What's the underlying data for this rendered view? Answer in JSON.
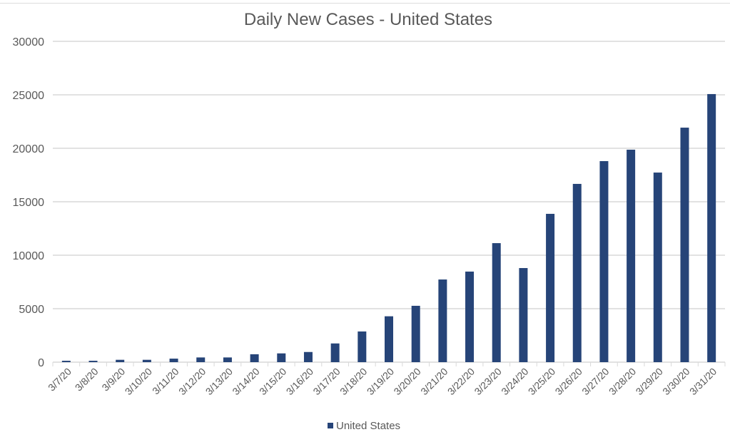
{
  "chart_data": {
    "type": "bar",
    "title": "Daily New Cases - United States",
    "xlabel": "",
    "ylabel": "",
    "ylim": [
      0,
      30000
    ],
    "yticks": [
      0,
      5000,
      10000,
      15000,
      20000,
      25000,
      30000
    ],
    "grid": true,
    "legend": "bottom",
    "categories": [
      "3/7/20",
      "3/8/20",
      "3/9/20",
      "3/10/20",
      "3/11/20",
      "3/12/20",
      "3/13/20",
      "3/14/20",
      "3/15/20",
      "3/16/20",
      "3/17/20",
      "3/18/20",
      "3/19/20",
      "3/20/20",
      "3/21/20",
      "3/22/20",
      "3/23/20",
      "3/24/20",
      "3/25/20",
      "3/26/20",
      "3/27/20",
      "3/28/20",
      "3/29/20",
      "3/30/20",
      "3/31/20"
    ],
    "series": [
      {
        "name": "United States",
        "color": "#264478",
        "values": [
          130,
          130,
          220,
          220,
          330,
          440,
          440,
          740,
          820,
          950,
          1750,
          2870,
          4290,
          5270,
          7730,
          8470,
          11130,
          8800,
          13870,
          16670,
          18800,
          19870,
          17730,
          21930,
          25070
        ]
      }
    ]
  }
}
